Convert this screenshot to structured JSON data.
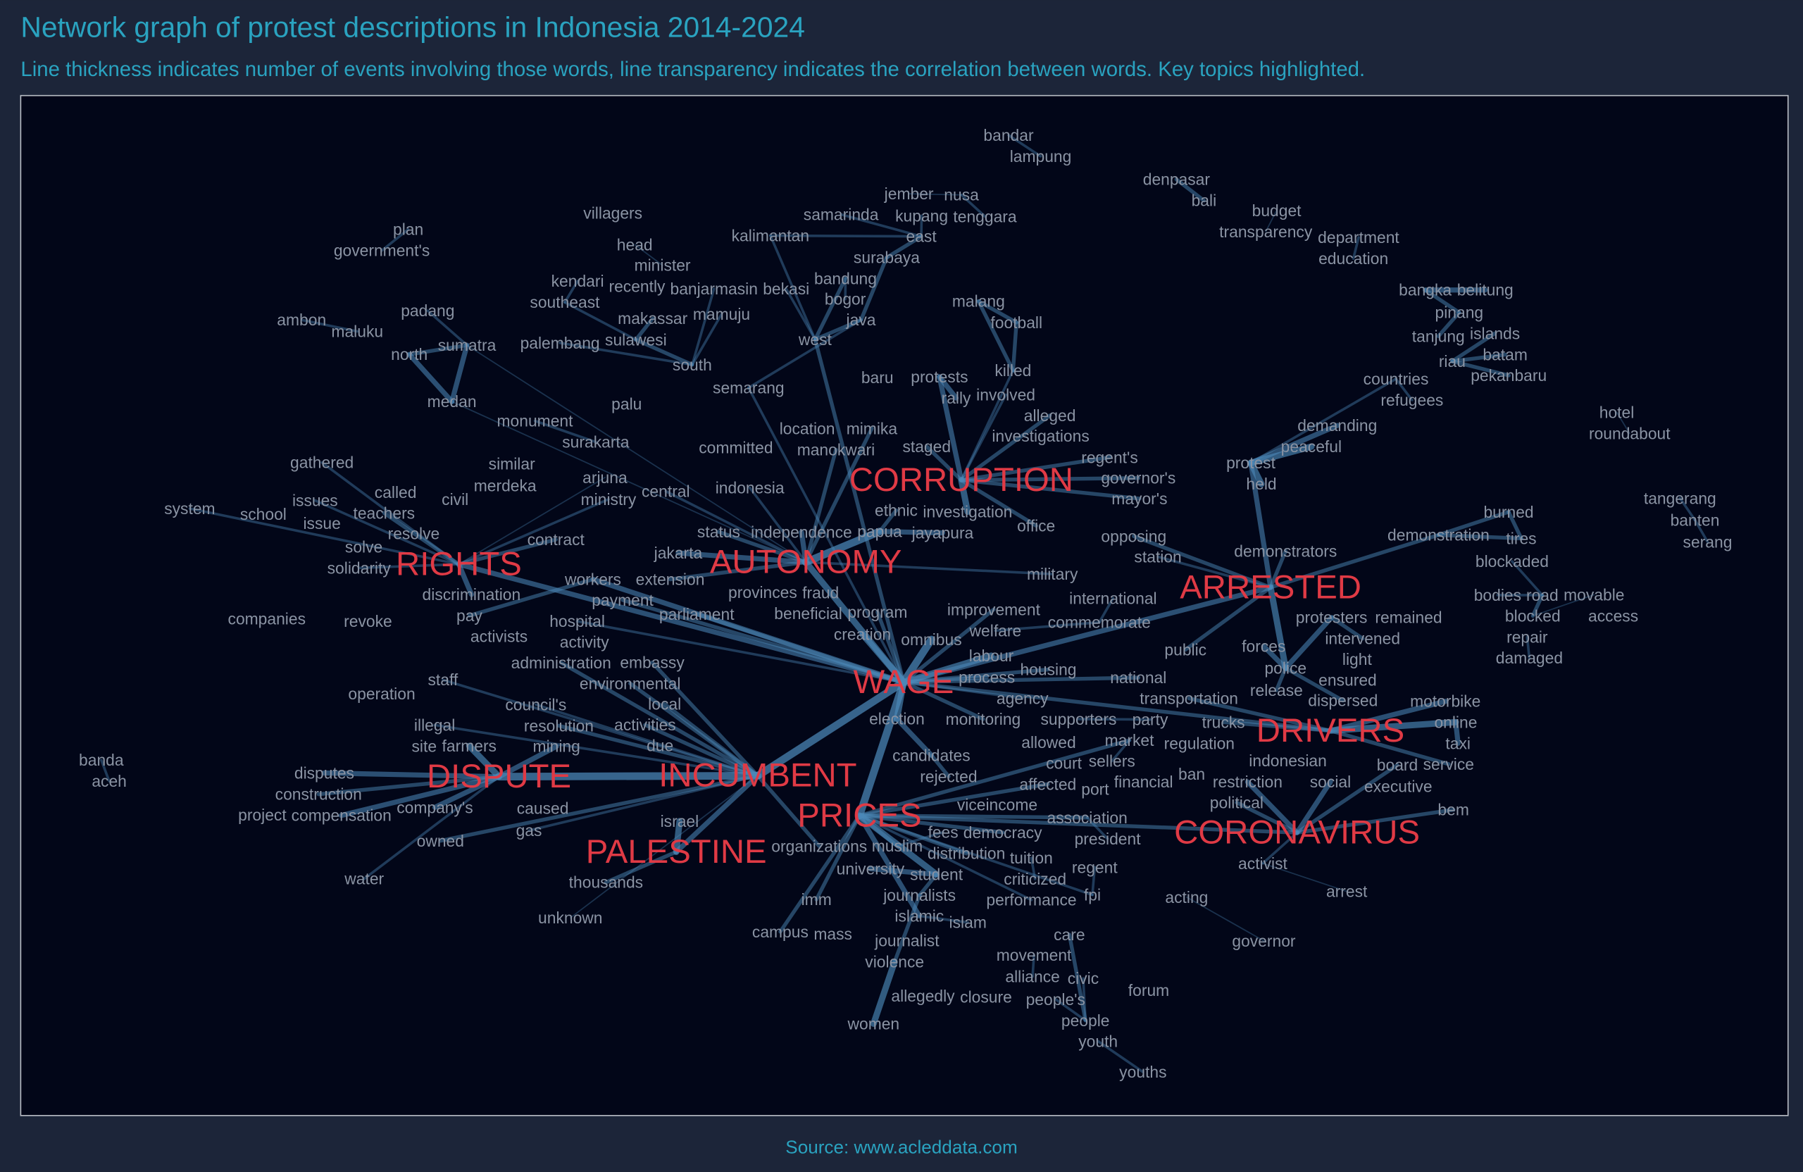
{
  "header": {
    "title": "Network graph of protest descriptions in Indonesia 2014-2024",
    "subtitle": "Line thickness indicates number of events involving those words, line transparency indicates the correlation between words. Key topics highlighted."
  },
  "footer": {
    "source": "Source: www.acleddata.com"
  },
  "colors": {
    "background": "#1c2539",
    "panel": "#020618",
    "text_accent": "#2aa3c0",
    "keyword": "#e03a45",
    "edge": "#4c88b8",
    "node_text": "#8a93a3"
  },
  "chart_data": {
    "type": "network",
    "title": "Network graph of protest descriptions in Indonesia 2014-2024",
    "key_topics": [
      "CORRUPTION",
      "AUTONOMY",
      "RIGHTS",
      "ARRESTED",
      "WAGE",
      "DRIVERS",
      "DISPUTE",
      "INCUMBENT",
      "PRICES",
      "CORONAVIRUS",
      "PALESTINE"
    ],
    "nodes": [
      "bandar",
      "lampung",
      "denpasar",
      "bali",
      "budget",
      "transparency",
      "department",
      "education",
      "plan",
      "government's",
      "villagers",
      "kalimantan",
      "samarinda",
      "jember",
      "nusa",
      "kupang",
      "tenggara",
      "east",
      "surabaya",
      "head",
      "minister",
      "recently",
      "banjarmasin",
      "bekasi",
      "bandung",
      "bogor",
      "java",
      "kendari",
      "southeast",
      "sulawesi",
      "makassar",
      "mamuju",
      "malang",
      "football",
      "killed",
      "west",
      "south",
      "padang",
      "ambon",
      "maluku",
      "sumatra",
      "palembang",
      "north",
      "medan",
      "semarang",
      "baru",
      "protests",
      "rally",
      "palu",
      "monument",
      "surakarta",
      "committed",
      "location",
      "mimika",
      "involved",
      "investigations",
      "alleged",
      "bangka",
      "belitung",
      "pinang",
      "tanjung",
      "islands",
      "batam",
      "riau",
      "pekanbaru",
      "countries",
      "refugees",
      "hotel",
      "roundabout",
      "demanding",
      "peaceful",
      "protest",
      "held",
      "tangerang",
      "banten",
      "serang",
      "burned",
      "demonstration",
      "tires",
      "demonstrators",
      "blockaded",
      "bodies",
      "road",
      "movable",
      "blocked",
      "access",
      "repair",
      "damaged",
      "gathered",
      "similar",
      "merdeka",
      "arjuna",
      "ministry",
      "central",
      "indonesia",
      "system",
      "school",
      "issues",
      "called",
      "civil",
      "issue",
      "teachers",
      "resolve",
      "solve",
      "contract",
      "solidarity",
      "discrimination",
      "companies",
      "revoke",
      "pay",
      "activists",
      "hospital",
      "activity",
      "workers",
      "payment",
      "parliament",
      "extension",
      "provinces",
      "fraud",
      "beneficial",
      "staff",
      "operation",
      "administration",
      "embassy",
      "council's",
      "environmental",
      "local",
      "illegal",
      "resolution",
      "mining",
      "due",
      "site",
      "activities",
      "banda",
      "aceh",
      "disputes",
      "farmers",
      "caused",
      "construction",
      "compensation",
      "company's",
      "project",
      "owned",
      "gas",
      "water",
      "unknown",
      "israel",
      "thousands",
      "campus",
      "mass",
      "violence",
      "journalist",
      "women",
      "islamic",
      "islam",
      "imm",
      "university",
      "journalists",
      "student",
      "democracy",
      "performance",
      "criticized",
      "tuition",
      "regent",
      "fpi",
      "care",
      "movement",
      "alliance",
      "allegedly",
      "closure",
      "civic",
      "people's",
      "people",
      "youth",
      "youths",
      "forum",
      "governor",
      "acting",
      "arrest",
      "activist",
      "association",
      "president",
      "viceincome",
      "affected",
      "port",
      "market",
      "sellers",
      "financial",
      "court",
      "allowed",
      "supporters",
      "party",
      "agency",
      "monitoring",
      "process",
      "housing",
      "national",
      "public",
      "station",
      "opposing",
      "military",
      "improvement",
      "welfare",
      "commemorate",
      "international",
      "mayor's",
      "governor's",
      "regent's",
      "office",
      "investigation",
      "papua",
      "jayapura",
      "transportation",
      "regulation",
      "restriction",
      "social",
      "indonesian",
      "political",
      "ban",
      "board",
      "executive",
      "bem",
      "motorbike",
      "online",
      "taxi",
      "service",
      "trucks",
      "forces",
      "police",
      "release",
      "light",
      "protesters",
      "remained",
      "intervened",
      "dispersed",
      "ensured",
      "staged",
      "manokwari",
      "ethnic",
      "status",
      "independence",
      "jakarta",
      "program",
      "creation",
      "omnibus",
      "labour",
      "election",
      "candidates",
      "rejected",
      "organizations",
      "muslim",
      "fees",
      "distribution"
    ],
    "edges": [
      [
        "bandar",
        "lampung",
        2
      ],
      [
        "denpasar",
        "bali",
        3
      ],
      [
        "budget",
        "transparency",
        1
      ],
      [
        "department",
        "education",
        2
      ],
      [
        "plan",
        "government's",
        2
      ],
      [
        "jember",
        "nusa",
        1
      ],
      [
        "nusa",
        "tenggara",
        2
      ],
      [
        "kupang",
        "east",
        2
      ],
      [
        "east",
        "surabaya",
        3
      ],
      [
        "surabaya",
        "java",
        3
      ],
      [
        "java",
        "west",
        3
      ],
      [
        "west",
        "bandung",
        3
      ],
      [
        "bandung",
        "bogor",
        2
      ],
      [
        "bekasi",
        "west",
        2
      ],
      [
        "kalimantan",
        "east",
        2
      ],
      [
        "kalimantan",
        "west",
        2
      ],
      [
        "samarinda",
        "east",
        2
      ],
      [
        "malang",
        "killed",
        3
      ],
      [
        "malang",
        "football",
        3
      ],
      [
        "football",
        "killed",
        3
      ],
      [
        "head",
        "minister",
        1
      ],
      [
        "south",
        "sulawesi",
        3
      ],
      [
        "sulawesi",
        "makassar",
        3
      ],
      [
        "southeast",
        "sulawesi",
        2
      ],
      [
        "kendari",
        "southeast",
        2
      ],
      [
        "mamuju",
        "south",
        2
      ],
      [
        "banjarmasin",
        "south",
        2
      ],
      [
        "palembang",
        "south",
        2
      ],
      [
        "north",
        "sumatra",
        3
      ],
      [
        "sumatra",
        "medan",
        4
      ],
      [
        "north",
        "medan",
        4
      ],
      [
        "padang",
        "sumatra",
        2
      ],
      [
        "ambon",
        "maluku",
        2
      ],
      [
        "semarang",
        "java",
        2
      ],
      [
        "bangka",
        "belitung",
        4
      ],
      [
        "bangka",
        "pinang",
        3
      ],
      [
        "riau",
        "islands",
        3
      ],
      [
        "riau",
        "batam",
        3
      ],
      [
        "riau",
        "pekanbaru",
        3
      ],
      [
        "tanjung",
        "pinang",
        3
      ],
      [
        "countries",
        "refugees",
        2
      ],
      [
        "protest",
        "held",
        5
      ],
      [
        "peaceful",
        "protest",
        5
      ],
      [
        "demanding",
        "protest",
        4
      ],
      [
        "hotel",
        "roundabout",
        1
      ],
      [
        "tangerang",
        "banten",
        2
      ],
      [
        "banten",
        "serang",
        2
      ],
      [
        "burned",
        "tires",
        3
      ],
      [
        "demonstration",
        "tires",
        3
      ],
      [
        "demonstration",
        "burned",
        3
      ],
      [
        "blockaded",
        "road",
        2
      ],
      [
        "road",
        "blocked",
        3
      ],
      [
        "movable",
        "blocked",
        1
      ],
      [
        "repair",
        "damaged",
        2
      ],
      [
        "bodies",
        "road",
        2
      ],
      [
        "banda",
        "aceh",
        2
      ],
      [
        "CORRUPTION",
        "investigation",
        5
      ],
      [
        "CORRUPTION",
        "regent's",
        3
      ],
      [
        "CORRUPTION",
        "governor's",
        3
      ],
      [
        "CORRUPTION",
        "mayor's",
        3
      ],
      [
        "CORRUPTION",
        "protests",
        4
      ],
      [
        "protests",
        "rally",
        4
      ],
      [
        "CORRUPTION",
        "alleged",
        3
      ],
      [
        "CORRUPTION",
        "office",
        3
      ],
      [
        "AUTONOMY",
        "papua",
        6
      ],
      [
        "papua",
        "jayapura",
        4
      ],
      [
        "papua",
        "ethnic",
        3
      ],
      [
        "AUTONOMY",
        "mimika",
        3
      ],
      [
        "AUTONOMY",
        "manokwari",
        3
      ],
      [
        "AUTONOMY",
        "WAGE",
        5
      ],
      [
        "AUTONOMY",
        "independence",
        4
      ],
      [
        "AUTONOMY",
        "indonesia",
        2
      ],
      [
        "AUTONOMY",
        "extension",
        3
      ],
      [
        "AUTONOMY",
        "jakarta",
        4
      ],
      [
        "AUTONOMY",
        "status",
        3
      ],
      [
        "WAGE",
        "INCUMBENT",
        6
      ],
      [
        "WAGE",
        "PRICES",
        6
      ],
      [
        "WAGE",
        "omnibus",
        6
      ],
      [
        "WAGE",
        "labour",
        5
      ],
      [
        "WAGE",
        "creation",
        5
      ],
      [
        "WAGE",
        "program",
        3
      ],
      [
        "WAGE",
        "national",
        3
      ],
      [
        "WAGE",
        "housing",
        3
      ],
      [
        "WAGE",
        "process",
        3
      ],
      [
        "WAGE",
        "workers",
        4
      ],
      [
        "workers",
        "pay",
        3
      ],
      [
        "WAGE",
        "DRIVERS",
        3
      ],
      [
        "WAGE",
        "ARRESTED",
        4
      ],
      [
        "WAGE",
        "semarang",
        2
      ],
      [
        "WAGE",
        "west",
        3
      ],
      [
        "WAGE",
        "election",
        5
      ],
      [
        "election",
        "candidates",
        4
      ],
      [
        "candidates",
        "rejected",
        3
      ],
      [
        "INCUMBENT",
        "DISPUTE",
        6
      ],
      [
        "DISPUTE",
        "farmers",
        5
      ],
      [
        "DISPUTE",
        "company's",
        4
      ],
      [
        "DISPUTE",
        "compensation",
        4
      ],
      [
        "DISPUTE",
        "mining",
        4
      ],
      [
        "DISPUTE",
        "water",
        2
      ],
      [
        "DISPUTE",
        "disputes",
        4
      ],
      [
        "DISPUTE",
        "construction",
        3
      ],
      [
        "INCUMBENT",
        "gas",
        2
      ],
      [
        "INCUMBENT",
        "owned",
        3
      ],
      [
        "INCUMBENT",
        "organizations",
        3
      ],
      [
        "RIGHTS",
        "discrimination",
        4
      ],
      [
        "RIGHTS",
        "system",
        2
      ],
      [
        "RIGHTS",
        "teachers",
        3
      ],
      [
        "RIGHTS",
        "WAGE",
        4
      ],
      [
        "gathered",
        "RIGHTS",
        2
      ],
      [
        "RIGHTS",
        "issues",
        2
      ],
      [
        "RIGHTS",
        "contract",
        3
      ],
      [
        "RIGHTS",
        "solidarity",
        2
      ],
      [
        "monument",
        "surakarta",
        2
      ],
      [
        "ARRESTED",
        "police",
        5
      ],
      [
        "police",
        "forces",
        4
      ],
      [
        "police",
        "protesters",
        4
      ],
      [
        "protesters",
        "intervened",
        3
      ],
      [
        "dispersed",
        "police",
        3
      ],
      [
        "release",
        "police",
        3
      ],
      [
        "protest",
        "ARRESTED",
        4
      ],
      [
        "demonstrators",
        "ARRESTED",
        3
      ],
      [
        "demonstration",
        "ARRESTED",
        3
      ],
      [
        "ARRESTED",
        "public",
        3
      ],
      [
        "DRIVERS",
        "online",
        5
      ],
      [
        "online",
        "taxi",
        4
      ],
      [
        "DRIVERS",
        "motorbike",
        4
      ],
      [
        "DRIVERS",
        "trucks",
        3
      ],
      [
        "DRIVERS",
        "transportation",
        3
      ],
      [
        "DRIVERS",
        "service",
        3
      ],
      [
        "CORONAVIRUS",
        "social",
        4
      ],
      [
        "CORONAVIRUS",
        "restriction",
        4
      ],
      [
        "CORONAVIRUS",
        "bem",
        3
      ],
      [
        "CORONAVIRUS",
        "activist",
        2
      ],
      [
        "CORONAVIRUS",
        "board",
        3
      ],
      [
        "CORONAVIRUS",
        "political",
        3
      ],
      [
        "PALESTINE",
        "israel",
        5
      ],
      [
        "PALESTINE",
        "thousands",
        3
      ],
      [
        "PALESTINE",
        "INCUMBENT",
        4
      ],
      [
        "PRICES",
        "CORONAVIRUS",
        3
      ],
      [
        "PRICES",
        "student",
        5
      ],
      [
        "student",
        "university",
        4
      ],
      [
        "student",
        "journalists",
        3
      ],
      [
        "journalists",
        "violence",
        3
      ],
      [
        "violence",
        "women",
        5
      ],
      [
        "islamic",
        "islam",
        2
      ],
      [
        "movement",
        "alliance",
        2
      ],
      [
        "people's",
        "people",
        2
      ],
      [
        "civic",
        "people",
        2
      ],
      [
        "youth",
        "youths",
        2
      ],
      [
        "care",
        "people",
        3
      ],
      [
        "PRICES",
        "democracy",
        3
      ],
      [
        "PRICES",
        "fpi",
        2
      ],
      [
        "fpi",
        "regent",
        2
      ],
      [
        "acting",
        "governor",
        1
      ],
      [
        "arrest",
        "activist",
        1
      ],
      [
        "PRICES",
        "muslim",
        3
      ],
      [
        "muslim",
        "fees",
        2
      ],
      [
        "PRICES",
        "distribution",
        3
      ],
      [
        "PRICES",
        "market",
        3
      ],
      [
        "market",
        "sellers",
        2
      ],
      [
        "PRICES",
        "affected",
        3
      ],
      [
        "PRICES",
        "association",
        3
      ],
      [
        "association",
        "president",
        2
      ],
      [
        "WAGE",
        "monitoring",
        3
      ],
      [
        "WAGE",
        "agency",
        2
      ],
      [
        "supporters",
        "party",
        2
      ],
      [
        "WAGE",
        "improvement",
        3
      ],
      [
        "welfare",
        "commemorate",
        2
      ],
      [
        "commemorate",
        "international",
        2
      ],
      [
        "station",
        "ARRESTED",
        2
      ],
      [
        "opposing",
        "ARRESTED",
        3
      ],
      [
        "military",
        "AUTONOMY",
        2
      ],
      [
        "INCUMBENT",
        "administration",
        3
      ],
      [
        "INCUMBENT",
        "embassy",
        3
      ],
      [
        "INCUMBENT",
        "environmental",
        3
      ],
      [
        "INCUMBENT",
        "resolution",
        3
      ],
      [
        "INCUMBENT",
        "activities",
        3
      ],
      [
        "INCUMBENT",
        "local",
        3
      ],
      [
        "INCUMBENT",
        "council's",
        2
      ],
      [
        "INCUMBENT",
        "staff",
        2
      ],
      [
        "INCUMBENT",
        "illegal",
        2
      ],
      [
        "hospital",
        "WAGE",
        2
      ],
      [
        "payment",
        "WAGE",
        3
      ],
      [
        "parliament",
        "WAGE",
        3
      ],
      [
        "medan",
        "AUTONOMY",
        1
      ],
      [
        "sumatra",
        "AUTONOMY",
        1
      ],
      [
        "central",
        "AUTONOMY",
        2
      ],
      [
        "ministry",
        "RIGHTS",
        2
      ],
      [
        "arjuna",
        "RIGHTS",
        1
      ],
      [
        "INCUMBENT",
        "unknown",
        1
      ],
      [
        "PRICES",
        "campus",
        3
      ],
      [
        "PRICES",
        "imm",
        3
      ],
      [
        "PRICES",
        "performance",
        2
      ],
      [
        "criticized",
        "tuition",
        2
      ],
      [
        "PRICES",
        "islamic",
        4
      ],
      [
        "CORRUPTION",
        "involved",
        2
      ],
      [
        "CORRUPTION",
        "staged",
        3
      ],
      [
        "killed",
        "CORRUPTION",
        2
      ],
      [
        "countries",
        "protest",
        2
      ]
    ]
  }
}
